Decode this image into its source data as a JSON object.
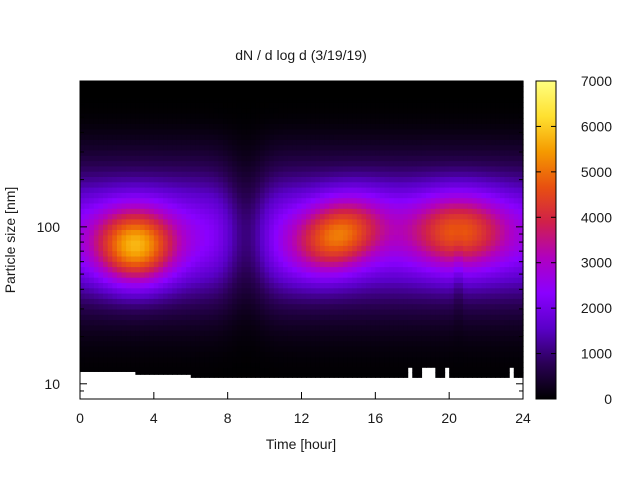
{
  "chart_data": {
    "type": "heatmap",
    "title": "dN / d log d (3/19/19)",
    "xlabel": "Time [hour]",
    "ylabel": "Particle size [nm]",
    "xlim": [
      0,
      24
    ],
    "ylim": [
      8,
      850
    ],
    "yscale": "log",
    "x_ticks": [
      0,
      4,
      8,
      12,
      16,
      20,
      24
    ],
    "x_tick_labels": [
      "0",
      "4",
      "8",
      "12",
      "16",
      "20",
      "24"
    ],
    "y_ticks": [
      10,
      100
    ],
    "y_tick_labels": [
      "10",
      "100"
    ],
    "colorbar": {
      "min": 0,
      "max": 7000,
      "ticks": [
        0,
        1000,
        2000,
        3000,
        4000,
        5000,
        6000,
        7000
      ],
      "tick_labels": [
        "0",
        "1000",
        "2000",
        "3000",
        "4000",
        "5000",
        "6000",
        "7000"
      ],
      "palette": [
        "#000000",
        "#2a0055",
        "#5a00c8",
        "#8a00ff",
        "#b000c0",
        "#d0204a",
        "#e85010",
        "#f59a00",
        "#ffe030",
        "#ffff80"
      ]
    },
    "grid": false,
    "legend": "none",
    "lower_size_cutoff_nm": [
      {
        "from_hour": 0,
        "to_hour": 2.9,
        "size_nm": 12
      },
      {
        "from_hour": 2.9,
        "to_hour": 6,
        "size_nm": 11.5
      },
      {
        "from_hour": 6,
        "to_hour": 24,
        "size_nm": 11
      }
    ],
    "upper_size_nm": 850,
    "data_gaps_hours": [
      17.9,
      18.5,
      18.9,
      19.0,
      19.8,
      23.4
    ],
    "regions": [
      {
        "name": "night_mode",
        "hour_center": 3,
        "hour_span": [
          0,
          6.3
        ],
        "size_center_nm": 75,
        "peak": 5700
      },
      {
        "name": "minimum",
        "hour_center": 9,
        "size_center_nm": 60,
        "peak": 1700
      },
      {
        "name": "afternoon_mode",
        "hour_center": 14,
        "hour_span": [
          10.5,
          16.8
        ],
        "size_center_nm": 75,
        "peak": 4900
      },
      {
        "name": "evening_mode",
        "hour_center": 20.5,
        "hour_span": [
          16.5,
          23.3
        ],
        "size_center_nm": 95,
        "peak": 4500
      }
    ]
  }
}
